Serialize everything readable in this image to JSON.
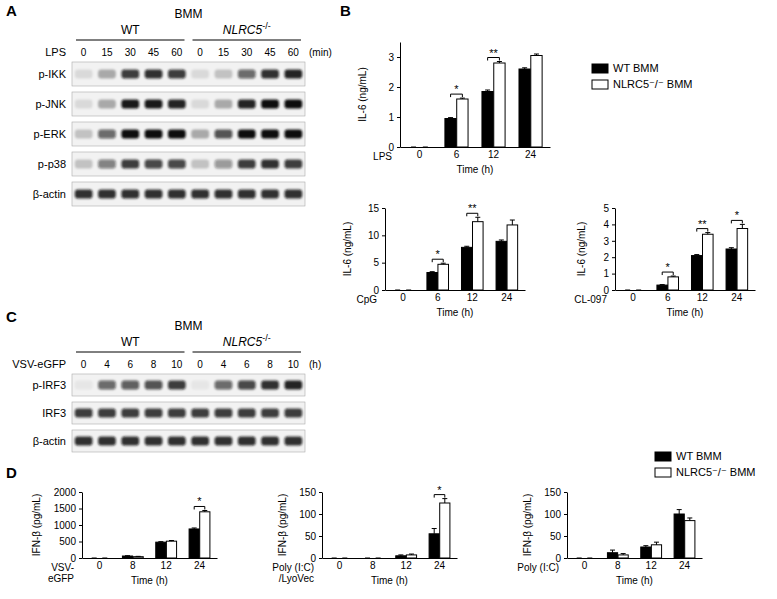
{
  "panel_labels": [
    "A",
    "B",
    "C",
    "D"
  ],
  "blots": [
    {
      "cell": "BMM",
      "groups": [
        {
          "label": "WT"
        },
        {
          "label": "NLRC5",
          "superscript": "-/-"
        }
      ],
      "treatment": "LPS",
      "lanes": [
        "0",
        "15",
        "30",
        "45",
        "60"
      ],
      "unit": "(min)",
      "rows": [
        {
          "label": "p-IKK",
          "band_intensity": [
            0.1,
            0.3,
            0.8,
            0.85,
            0.8,
            0.1,
            0.2,
            0.6,
            0.85,
            0.9
          ]
        },
        {
          "label": "p-JNK",
          "band_intensity": [
            0.1,
            0.3,
            0.95,
            0.95,
            0.9,
            0.1,
            0.3,
            0.9,
            1,
            1
          ]
        },
        {
          "label": "p-ERK",
          "band_intensity": [
            0.2,
            0.6,
            1,
            1,
            1,
            0.3,
            0.7,
            1,
            1,
            1
          ]
        },
        {
          "label": "p-p38",
          "band_intensity": [
            0.2,
            0.5,
            0.8,
            0.75,
            0.75,
            0.2,
            0.4,
            0.8,
            0.85,
            0.8
          ]
        },
        {
          "label": "β-actin",
          "band_intensity": [
            0.85,
            0.85,
            0.85,
            0.85,
            0.85,
            0.85,
            0.85,
            0.85,
            0.85,
            0.85
          ]
        }
      ]
    },
    {
      "cell": "BMM",
      "groups": [
        {
          "label": "WT"
        },
        {
          "label": "NLRC5",
          "superscript": "-/-"
        }
      ],
      "treatment": "VSV-eGFP",
      "lanes": [
        "0",
        "4",
        "6",
        "8",
        "10"
      ],
      "unit": "(h)",
      "rows": [
        {
          "label": "p-IRF3",
          "band_intensity": [
            0.05,
            0.6,
            0.65,
            0.7,
            0.8,
            0.05,
            0.6,
            0.75,
            0.85,
            0.9
          ]
        },
        {
          "label": "IRF3",
          "band_intensity": [
            0.8,
            0.8,
            0.8,
            0.8,
            0.8,
            0.8,
            0.8,
            0.8,
            0.8,
            0.8
          ]
        },
        {
          "label": "β-actin",
          "band_intensity": [
            0.85,
            0.85,
            0.85,
            0.85,
            0.85,
            0.85,
            0.85,
            0.85,
            0.85,
            0.85
          ]
        }
      ]
    }
  ],
  "chart_data": [
    {
      "type": "bar",
      "condition": [
        "LPS"
      ],
      "y_label": "IL-6 (ng/mL)",
      "x_label": "Time (h)",
      "categories": [
        "0",
        "6",
        "12",
        "24"
      ],
      "series": [
        {
          "name": "WT BMM",
          "color": "#000000",
          "values": [
            0,
            0.95,
            1.85,
            2.6
          ],
          "errors": [
            0,
            0.03,
            0.05,
            0.04
          ]
        },
        {
          "name": "NLRC5⁻/⁻ BMM",
          "color": "#ffffff",
          "values": [
            0,
            1.6,
            2.8,
            3.05
          ],
          "errors": [
            0,
            0.03,
            0.05,
            0.05
          ]
        }
      ],
      "ylim": [
        0,
        3.5
      ],
      "yticks": [
        0,
        1,
        2,
        3
      ],
      "significance": [
        null,
        "*",
        "**",
        null
      ],
      "legend": "right"
    },
    {
      "type": "bar",
      "condition": [
        "CpG"
      ],
      "y_label": "IL-6 (ng/mL)",
      "x_label": "Time (h)",
      "categories": [
        "0",
        "6",
        "12",
        "24"
      ],
      "series": [
        {
          "color": "#000000",
          "values": [
            0,
            3.2,
            7.8,
            8.9
          ],
          "errors": [
            0,
            0.15,
            0.2,
            0.25
          ]
        },
        {
          "color": "#ffffff",
          "values": [
            0,
            4.7,
            12.5,
            11.9
          ],
          "errors": [
            0,
            0.2,
            0.8,
            0.9
          ]
        }
      ],
      "ylim": [
        0,
        15
      ],
      "yticks": [
        0,
        5,
        10,
        15
      ],
      "significance": [
        null,
        "*",
        "**",
        null
      ]
    },
    {
      "type": "bar",
      "condition": [
        "CL-097"
      ],
      "y_label": "IL-6 (ng/mL)",
      "x_label": "Time (h)",
      "categories": [
        "0",
        "6",
        "12",
        "24"
      ],
      "series": [
        {
          "color": "#000000",
          "values": [
            0,
            0.3,
            2.1,
            2.5
          ],
          "errors": [
            0,
            0.03,
            0.06,
            0.08
          ]
        },
        {
          "color": "#ffffff",
          "values": [
            0,
            0.8,
            3.4,
            3.75
          ],
          "errors": [
            0,
            0.05,
            0.1,
            0.25
          ]
        }
      ],
      "ylim": [
        0,
        5
      ],
      "yticks": [
        0,
        1,
        2,
        3,
        4,
        5
      ],
      "significance": [
        null,
        "*",
        "**",
        "*"
      ]
    },
    {
      "type": "bar",
      "condition": [
        "VSV-",
        "eGFP"
      ],
      "y_label": "IFN-β (pg/mL)",
      "x_label": "Time (h)",
      "categories": [
        "0",
        "8",
        "12",
        "24"
      ],
      "series": [
        {
          "color": "#000000",
          "values": [
            0,
            60,
            480,
            880
          ],
          "errors": [
            0,
            10,
            15,
            30
          ]
        },
        {
          "color": "#ffffff",
          "values": [
            0,
            40,
            510,
            1400
          ],
          "errors": [
            0,
            10,
            20,
            40
          ]
        }
      ],
      "ylim": [
        0,
        2000
      ],
      "yticks": [
        0,
        500,
        1000,
        1500,
        2000
      ],
      "significance": [
        null,
        null,
        null,
        "*"
      ]
    },
    {
      "type": "bar",
      "condition": [
        "Poly (I:C)",
        "/LyoVec"
      ],
      "y_label": "IFN-β (pg/mL)",
      "x_label": "Time (h)",
      "categories": [
        "0",
        "8",
        "12",
        "24"
      ],
      "series": [
        {
          "color": "#000000",
          "values": [
            0,
            0,
            5,
            55
          ],
          "errors": [
            0,
            0,
            2,
            12
          ]
        },
        {
          "color": "#ffffff",
          "values": [
            0,
            0,
            7,
            125
          ],
          "errors": [
            0,
            0,
            2,
            10
          ]
        }
      ],
      "ylim": [
        0,
        150
      ],
      "yticks": [
        0,
        50,
        100,
        150
      ],
      "significance": [
        null,
        null,
        null,
        "*"
      ]
    },
    {
      "type": "bar",
      "condition": [
        "Poly (I:C)"
      ],
      "y_label": "IFN-β (pg/mL)",
      "x_label": "Time (h)",
      "categories": [
        "0",
        "8",
        "12",
        "24"
      ],
      "series": [
        {
          "name": "WT BMM",
          "color": "#000000",
          "values": [
            0,
            12,
            25,
            100
          ],
          "errors": [
            0,
            6,
            3,
            10
          ]
        },
        {
          "name": "NLRC5⁻/⁻ BMM",
          "color": "#ffffff",
          "values": [
            0,
            7,
            30,
            85
          ],
          "errors": [
            0,
            3,
            6,
            6
          ]
        }
      ],
      "ylim": [
        0,
        150
      ],
      "yticks": [
        0,
        50,
        100,
        150
      ],
      "legend": "right"
    }
  ]
}
